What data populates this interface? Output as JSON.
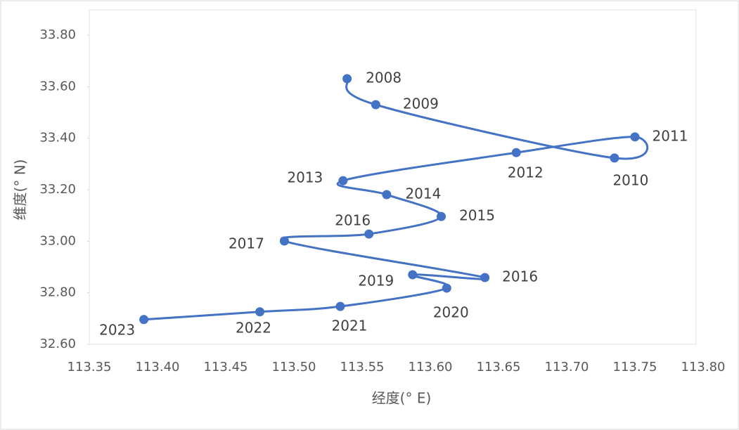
{
  "chart_data": {
    "type": "scatter",
    "x_label": "经度(° E)",
    "y_label": "维度(° N)",
    "xlim": [
      113.35,
      113.8
    ],
    "xticks": [
      {
        "value": 113.35,
        "label": "113.35"
      },
      {
        "value": 113.4,
        "label": "113.40"
      },
      {
        "value": 113.45,
        "label": "113.45"
      },
      {
        "value": 113.5,
        "label": "113.50"
      },
      {
        "value": 113.55,
        "label": "113.55"
      },
      {
        "value": 113.6,
        "label": "113.60"
      },
      {
        "value": 113.65,
        "label": "113.65"
      },
      {
        "value": 113.7,
        "label": "113.70"
      },
      {
        "value": 113.75,
        "label": "113.75"
      },
      {
        "value": 113.8,
        "label": "113.80"
      }
    ],
    "ylim": [
      32.6,
      33.8
    ],
    "yticks": [
      {
        "value": 32.6,
        "label": "32.60"
      },
      {
        "value": 32.8,
        "label": "32.80"
      },
      {
        "value": 33.0,
        "label": "33.00"
      },
      {
        "value": 33.2,
        "label": "33.20"
      },
      {
        "value": 33.4,
        "label": "33.40"
      },
      {
        "value": 33.6,
        "label": "33.60"
      },
      {
        "value": 33.8,
        "label": "33.80"
      }
    ],
    "series": [
      {
        "color": "#4472c4",
        "labels": [
          "2008",
          "2009",
          "2010",
          "2011",
          "2012",
          "2013",
          "2014",
          "2015",
          "2016",
          "2017",
          "2016",
          "2019",
          "2020",
          "2021",
          "2022",
          "2023"
        ],
        "x": [
          113.539,
          113.56,
          113.735,
          113.75,
          113.663,
          113.536,
          113.568,
          113.608,
          113.555,
          113.493,
          113.64,
          113.587,
          113.612,
          113.534,
          113.475,
          113.39
        ],
        "values": [
          33.631,
          33.53,
          33.323,
          33.405,
          33.344,
          33.235,
          33.181,
          33.096,
          33.028,
          33.001,
          32.859,
          32.87,
          32.818,
          32.747,
          32.726,
          32.696
        ]
      }
    ]
  }
}
